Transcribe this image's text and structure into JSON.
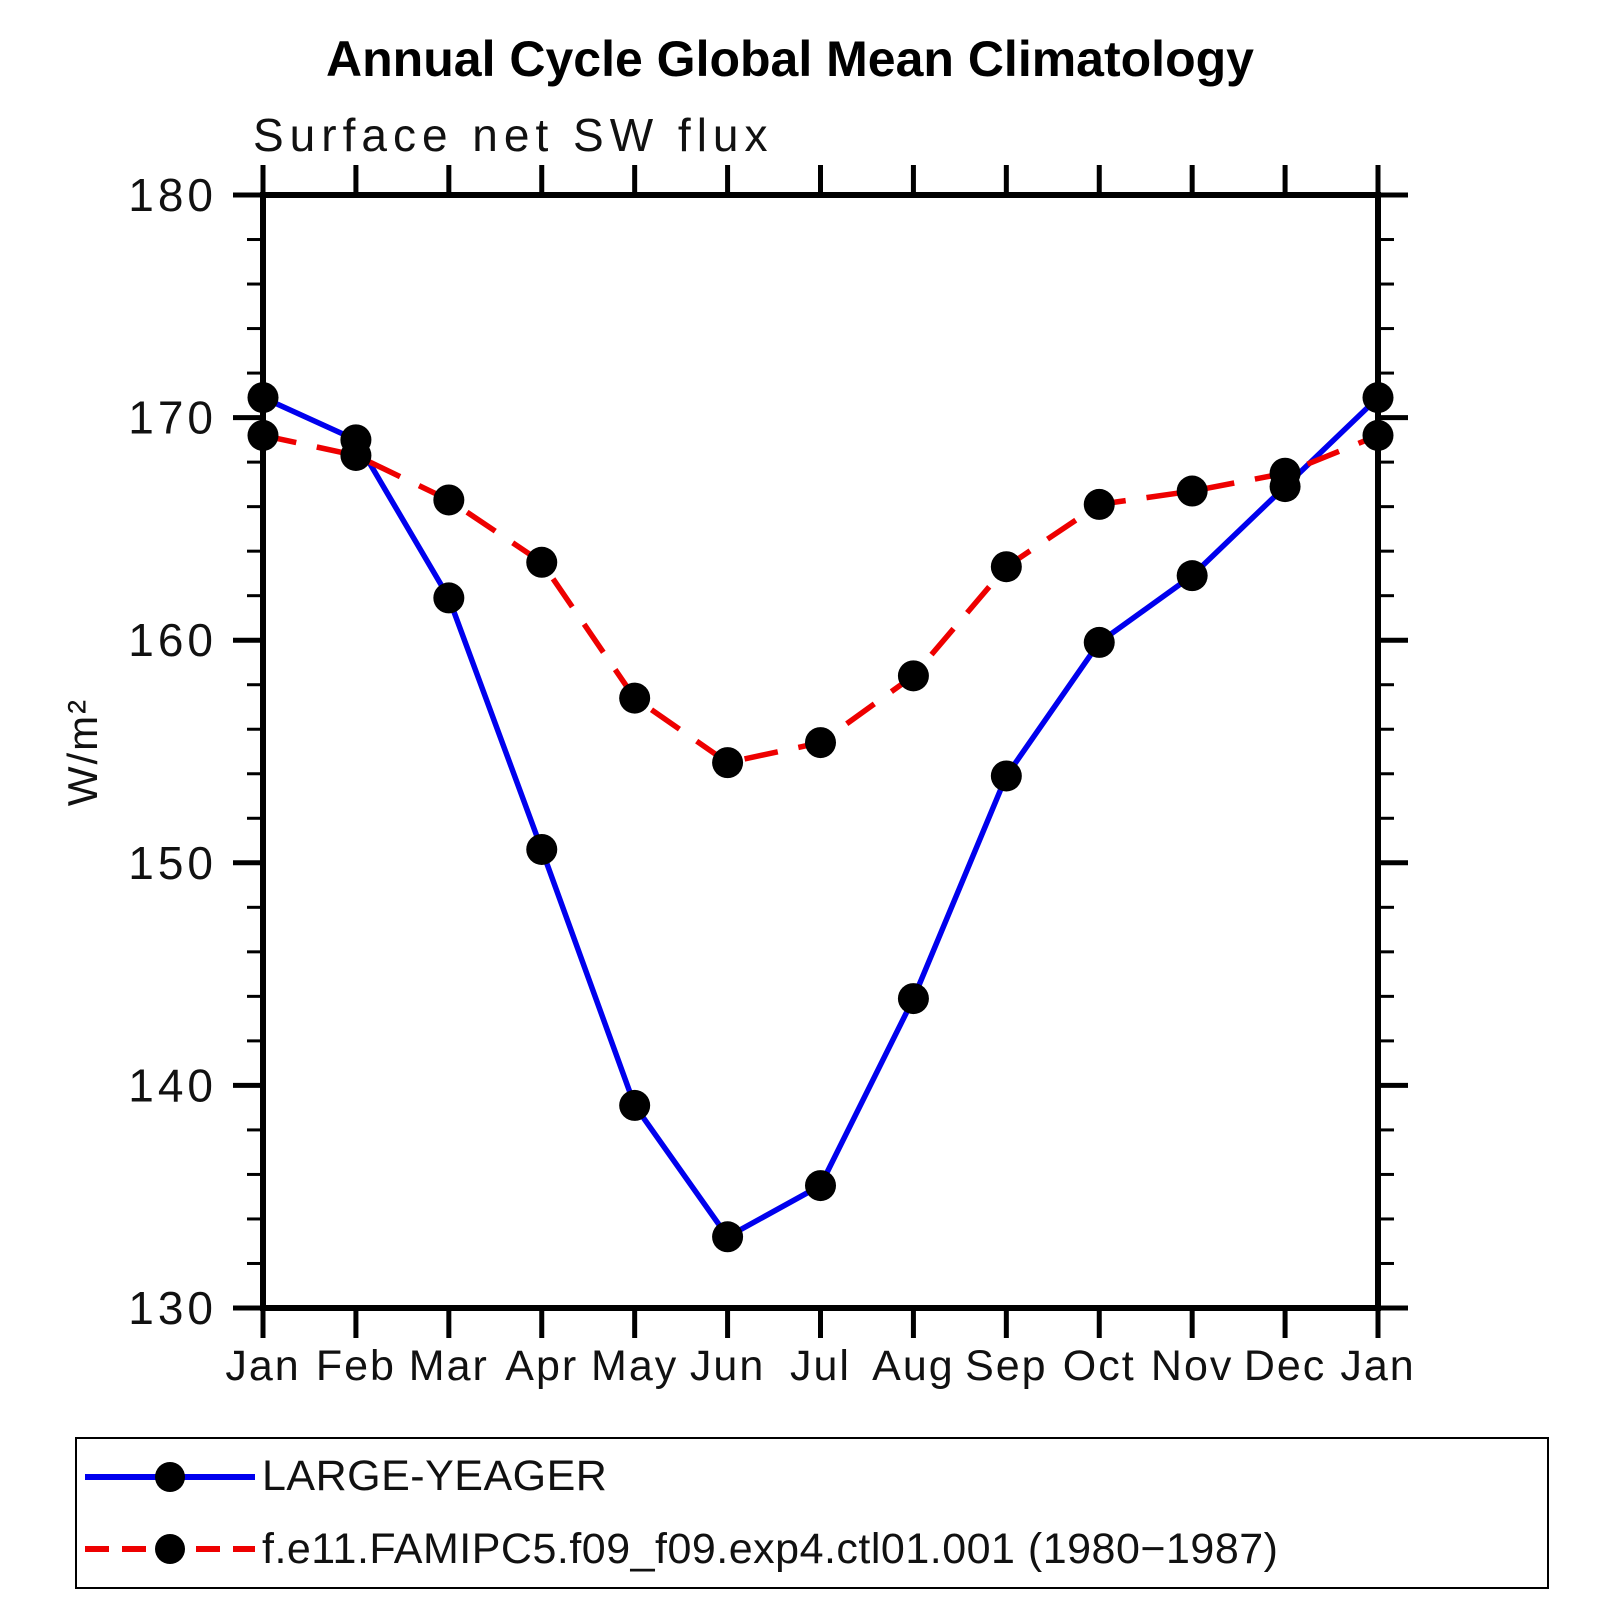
{
  "chart_data": {
    "type": "line",
    "title": "Annual Cycle Global Mean Climatology",
    "subtitle": "Surface net SW flux",
    "ylabel": "W/m²",
    "xlabel": "",
    "categories": [
      "Jan",
      "Feb",
      "Mar",
      "Apr",
      "May",
      "Jun",
      "Jul",
      "Aug",
      "Sep",
      "Oct",
      "Nov",
      "Dec",
      "Jan"
    ],
    "series": [
      {
        "name": "LARGE-YEAGER",
        "color": "#0000ee",
        "line_style": "solid",
        "marker": "filled-circle",
        "marker_color": "#000000",
        "values": [
          170.9,
          169.0,
          161.9,
          150.6,
          139.1,
          133.2,
          135.5,
          143.9,
          153.9,
          159.9,
          162.9,
          166.9,
          170.9
        ]
      },
      {
        "name": "f.e11.FAMIPC5.f09_f09.exp4.ctl01.001 (1980−1987)",
        "color": "#ee0000",
        "line_style": "dashed",
        "marker": "filled-circle",
        "marker_color": "#000000",
        "values": [
          169.2,
          168.3,
          166.3,
          163.5,
          157.4,
          154.5,
          155.4,
          158.4,
          163.3,
          166.1,
          166.7,
          167.5,
          169.2
        ]
      }
    ],
    "ylim": [
      130,
      180
    ],
    "y_major_ticks": [
      130,
      140,
      150,
      160,
      170,
      180
    ],
    "y_minor_step": 2,
    "grid": false,
    "legend_position": "bottom",
    "axis_color": "#000000"
  }
}
